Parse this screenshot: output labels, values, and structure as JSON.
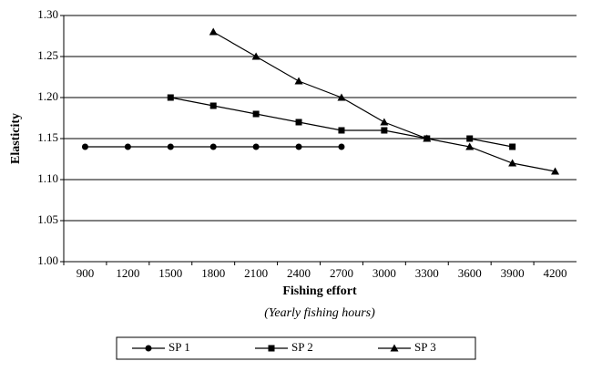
{
  "chart_data": {
    "type": "line",
    "x_label": "Fishing effort",
    "x_sublabel": "(Yearly fishing hours)",
    "y_label": "Elasticity",
    "categories": [
      "900",
      "1200",
      "1500",
      "1800",
      "2100",
      "2400",
      "2700",
      "3000",
      "3300",
      "3600",
      "3900",
      "4200"
    ],
    "series": [
      {
        "name": "SP 1",
        "color": "#000000",
        "marker": "circle",
        "values": [
          1.14,
          1.14,
          1.14,
          1.14,
          1.14,
          1.14,
          1.14,
          null,
          null,
          null,
          null,
          null
        ]
      },
      {
        "name": "SP 2",
        "color": "#000000",
        "marker": "square",
        "values": [
          null,
          null,
          1.2,
          1.19,
          1.18,
          1.17,
          1.16,
          1.16,
          1.15,
          1.15,
          1.14,
          null
        ]
      },
      {
        "name": "SP 3",
        "color": "#000000",
        "marker": "triangle",
        "values": [
          null,
          null,
          null,
          1.28,
          1.25,
          1.22,
          1.2,
          1.17,
          1.15,
          1.14,
          1.12,
          1.11
        ]
      }
    ],
    "ylim": [
      1.0,
      1.3
    ],
    "yticks": [
      {
        "value": 1.0,
        "label": "1.00"
      },
      1.05,
      {
        "value": 1.1,
        "label": "1.10"
      },
      1.15,
      {
        "value": 1.2,
        "label": "1.20"
      },
      1.25,
      {
        "value": 1.3,
        "label": "1.30"
      }
    ],
    "grid": true,
    "legend": "bottom"
  }
}
